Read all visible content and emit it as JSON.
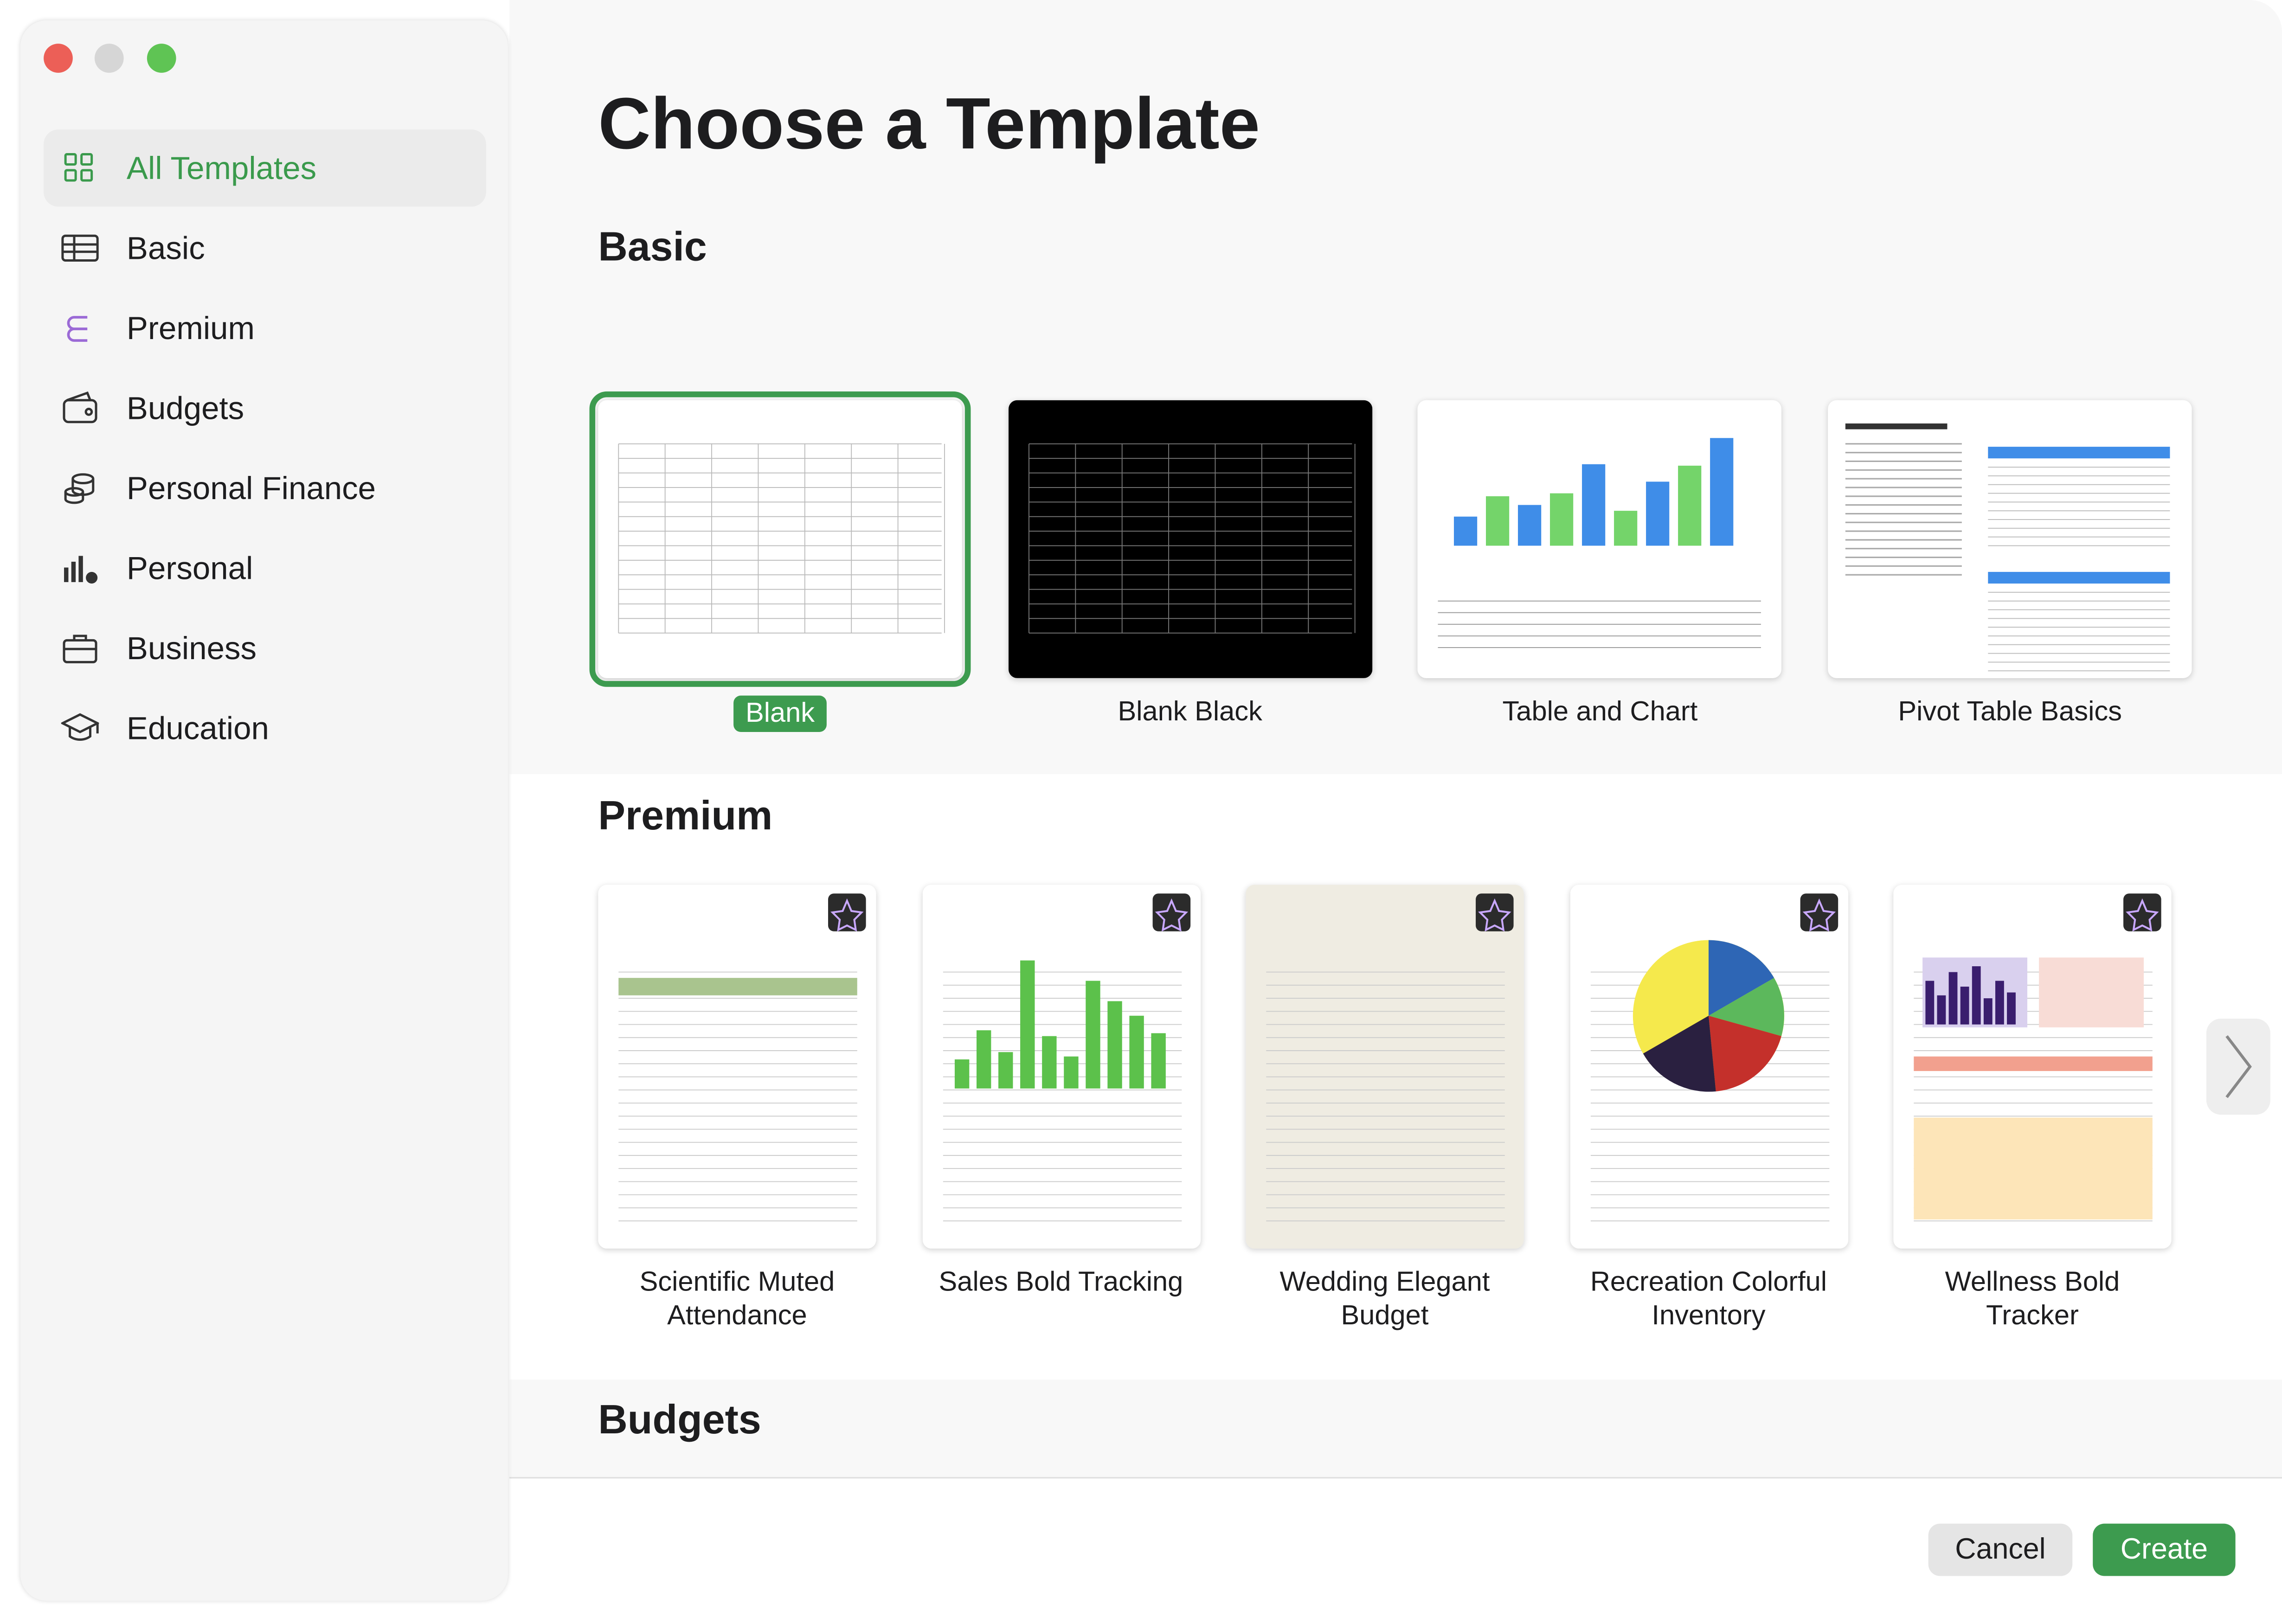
{
  "window": {
    "title": "Choose a Template"
  },
  "sidebar": {
    "items": [
      {
        "label": "All Templates",
        "selected": true
      },
      {
        "label": "Basic"
      },
      {
        "label": "Premium"
      },
      {
        "label": "Budgets"
      },
      {
        "label": "Personal Finance"
      },
      {
        "label": "Personal"
      },
      {
        "label": "Business"
      },
      {
        "label": "Education"
      }
    ]
  },
  "sections": [
    {
      "title": "Basic",
      "selected": 0,
      "templates": [
        "Blank",
        "Blank Black",
        "Table and Chart",
        "Pivot Table Basics"
      ]
    },
    {
      "title": "Premium",
      "templates": [
        "Scientific Muted Attendance",
        "Sales Bold Tracking",
        "Wedding Elegant Budget",
        "Recreation Colorful Inventory",
        "Wellness Bold Tracker"
      ]
    },
    {
      "title": "Budgets",
      "templates": []
    }
  ],
  "buttons": {
    "cancel": "Cancel",
    "create": "Create"
  }
}
